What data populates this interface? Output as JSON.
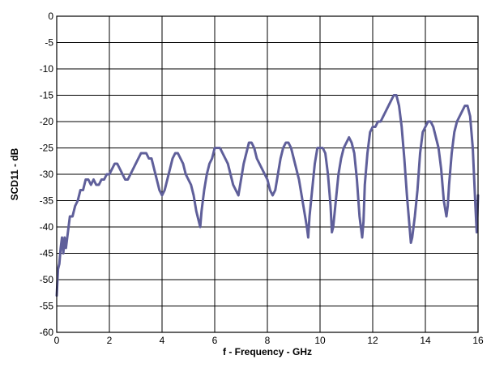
{
  "chart_data": {
    "type": "line",
    "title": "",
    "xlabel": "f - Frequency - GHz",
    "ylabel": "SCD11 - dB",
    "xlim": [
      0,
      16
    ],
    "ylim": [
      -60,
      0
    ],
    "xticks": [
      0,
      2,
      4,
      6,
      8,
      10,
      12,
      14,
      16
    ],
    "yticks": [
      0,
      -5,
      -10,
      -15,
      -20,
      -25,
      -30,
      -35,
      -40,
      -45,
      -50,
      -55,
      -60
    ],
    "grid": true,
    "colors": {
      "series": "#5f5f9a",
      "grid": "#000000",
      "background": "#ffffff"
    },
    "series": [
      {
        "x": [
          0.0,
          0.05,
          0.1,
          0.15,
          0.2,
          0.25,
          0.3,
          0.35,
          0.4,
          0.45,
          0.5,
          0.6,
          0.7,
          0.8,
          0.9,
          1.0,
          1.1,
          1.2,
          1.3,
          1.4,
          1.5,
          1.6,
          1.7,
          1.8,
          1.9,
          2.0,
          2.1,
          2.2,
          2.3,
          2.4,
          2.5,
          2.6,
          2.7,
          2.8,
          2.9,
          3.0,
          3.1,
          3.2,
          3.3,
          3.4,
          3.5,
          3.6,
          3.7,
          3.8,
          3.9,
          4.0,
          4.1,
          4.2,
          4.3,
          4.4,
          4.5,
          4.6,
          4.7,
          4.8,
          4.9,
          5.0,
          5.1,
          5.2,
          5.3,
          5.4,
          5.45,
          5.5,
          5.6,
          5.7,
          5.8,
          5.9,
          6.0,
          6.1,
          6.2,
          6.3,
          6.4,
          6.5,
          6.6,
          6.7,
          6.8,
          6.9,
          7.0,
          7.1,
          7.2,
          7.3,
          7.4,
          7.5,
          7.6,
          7.7,
          7.8,
          7.9,
          8.0,
          8.1,
          8.2,
          8.3,
          8.4,
          8.5,
          8.6,
          8.7,
          8.8,
          8.9,
          9.0,
          9.1,
          9.2,
          9.3,
          9.4,
          9.5,
          9.55,
          9.6,
          9.7,
          9.8,
          9.9,
          10.0,
          10.1,
          10.2,
          10.3,
          10.4,
          10.45,
          10.5,
          10.6,
          10.7,
          10.8,
          10.9,
          11.0,
          11.1,
          11.2,
          11.3,
          11.4,
          11.5,
          11.6,
          11.65,
          11.7,
          11.8,
          11.9,
          12.0,
          12.1,
          12.2,
          12.3,
          12.4,
          12.5,
          12.6,
          12.7,
          12.8,
          12.9,
          13.0,
          13.1,
          13.2,
          13.3,
          13.4,
          13.45,
          13.5,
          13.6,
          13.7,
          13.8,
          13.9,
          14.0,
          14.1,
          14.2,
          14.3,
          14.4,
          14.5,
          14.6,
          14.7,
          14.8,
          14.85,
          14.9,
          15.0,
          15.1,
          15.2,
          15.3,
          15.4,
          15.5,
          15.6,
          15.7,
          15.8,
          15.9,
          15.95,
          16.0
        ],
        "y": [
          -53,
          -48,
          -47,
          -44,
          -42,
          -45,
          -42,
          -44,
          -42,
          -40,
          -38,
          -38,
          -36,
          -35,
          -33,
          -33,
          -31,
          -31,
          -32,
          -31,
          -32,
          -32,
          -31,
          -31,
          -30,
          -30,
          -29,
          -28,
          -28,
          -29,
          -30,
          -31,
          -31,
          -30,
          -29,
          -28,
          -27,
          -26,
          -26,
          -26,
          -27,
          -27,
          -29,
          -31,
          -33,
          -34,
          -33,
          -31,
          -29,
          -27,
          -26,
          -26,
          -27,
          -28,
          -30,
          -31,
          -32,
          -34,
          -37,
          -39,
          -40,
          -37,
          -33,
          -30,
          -28,
          -27,
          -25,
          -25,
          -25,
          -26,
          -27,
          -28,
          -30,
          -32,
          -33,
          -34,
          -31,
          -28,
          -26,
          -24,
          -24,
          -25,
          -27,
          -28,
          -29,
          -30,
          -31,
          -33,
          -34,
          -33,
          -30,
          -27,
          -25,
          -24,
          -24,
          -25,
          -27,
          -29,
          -31,
          -34,
          -37,
          -40,
          -42,
          -38,
          -33,
          -28,
          -25,
          -25,
          -25,
          -26,
          -30,
          -36,
          -41,
          -40,
          -35,
          -30,
          -27,
          -25,
          -24,
          -23,
          -24,
          -26,
          -31,
          -38,
          -42,
          -39,
          -32,
          -26,
          -22,
          -21,
          -21,
          -20,
          -20,
          -19,
          -18,
          -17,
          -16,
          -15,
          -15,
          -17,
          -21,
          -27,
          -34,
          -40,
          -43,
          -42,
          -38,
          -33,
          -26,
          -22,
          -21,
          -20,
          -20,
          -21,
          -23,
          -25,
          -29,
          -35,
          -38,
          -36,
          -32,
          -26,
          -22,
          -20,
          -19,
          -18,
          -17,
          -17,
          -19,
          -25,
          -36,
          -41,
          -34
        ]
      }
    ]
  }
}
